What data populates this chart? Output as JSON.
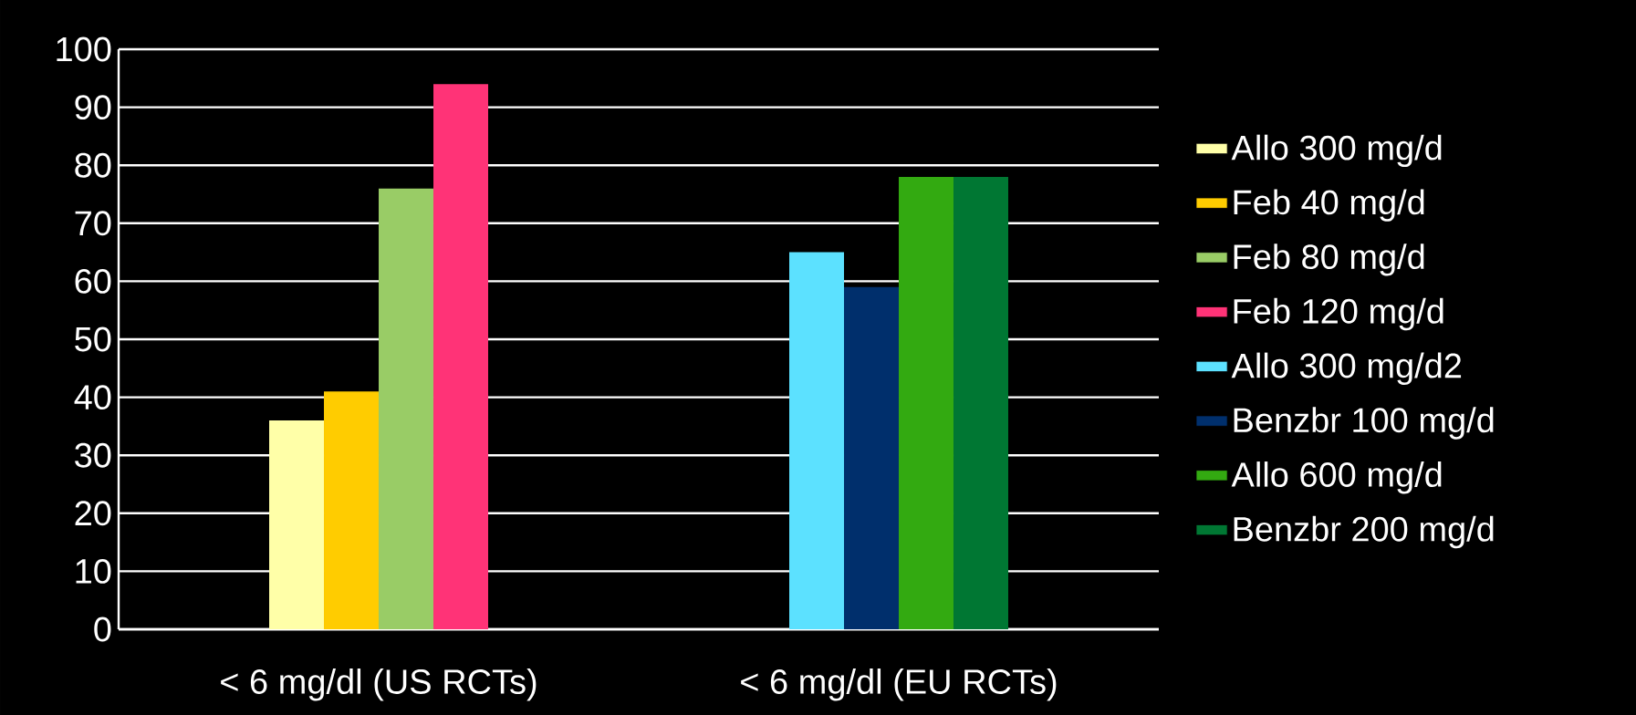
{
  "chart_data": {
    "type": "bar",
    "categories": [
      "< 6 mg/dl (US RCTs)",
      "< 6 mg/dl (EU RCTs)"
    ],
    "series": [
      {
        "name": "Allo 300 mg/d",
        "color": "#ffffa8",
        "values": [
          36,
          null
        ]
      },
      {
        "name": "Feb 40 mg/d",
        "color": "#ffcc00",
        "values": [
          41,
          null
        ]
      },
      {
        "name": "Feb 80 mg/d",
        "color": "#99cc66",
        "values": [
          76,
          null
        ]
      },
      {
        "name": "Feb 120 mg/d",
        "color": "#ff3377",
        "values": [
          94,
          null
        ]
      },
      {
        "name": "Allo 300 mg/d2",
        "color": "#5ce1ff",
        "values": [
          null,
          65
        ]
      },
      {
        "name": "Benzbr 100 mg/d",
        "color": "#002f6c",
        "values": [
          null,
          59
        ]
      },
      {
        "name": "Allo 600 mg/d",
        "color": "#33aa11",
        "values": [
          null,
          78
        ]
      },
      {
        "name": "Benzbr 200 mg/d",
        "color": "#007733",
        "values": [
          null,
          78
        ]
      }
    ],
    "ylim": [
      0,
      100
    ],
    "yticks": [
      0,
      10,
      20,
      30,
      40,
      50,
      60,
      70,
      80,
      90,
      100
    ],
    "grid": "y",
    "legend": "right"
  }
}
